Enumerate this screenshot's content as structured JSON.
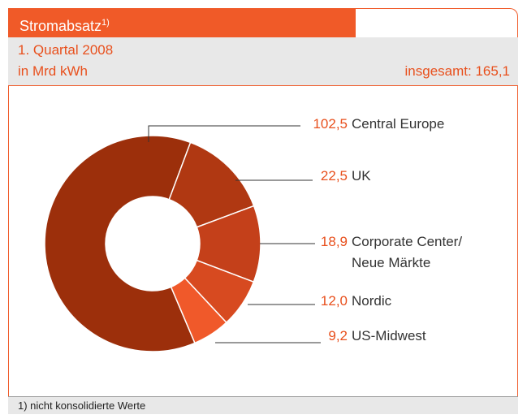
{
  "chart_data": {
    "type": "donut",
    "title": "Stromabsatz",
    "title_note": "1)",
    "subtitle": "1. Quartal 2008",
    "unit": "in Mrd kWh",
    "total_label": "insgesamt: 165,1",
    "categories": [
      "Central Europe",
      "UK",
      "Corporate Center/ Neue Märkte",
      "Nordic",
      "US-Midwest"
    ],
    "values": [
      102.5,
      22.5,
      18.9,
      12.0,
      9.2
    ],
    "value_labels": [
      "102,5",
      "22,5",
      "18,9",
      "12,0",
      "9,2"
    ],
    "colors": [
      "#9c2f0b",
      "#b03812",
      "#c4401a",
      "#d74a20",
      "#f0592a"
    ],
    "footnote": "1) nicht konsolidierte Werte"
  }
}
